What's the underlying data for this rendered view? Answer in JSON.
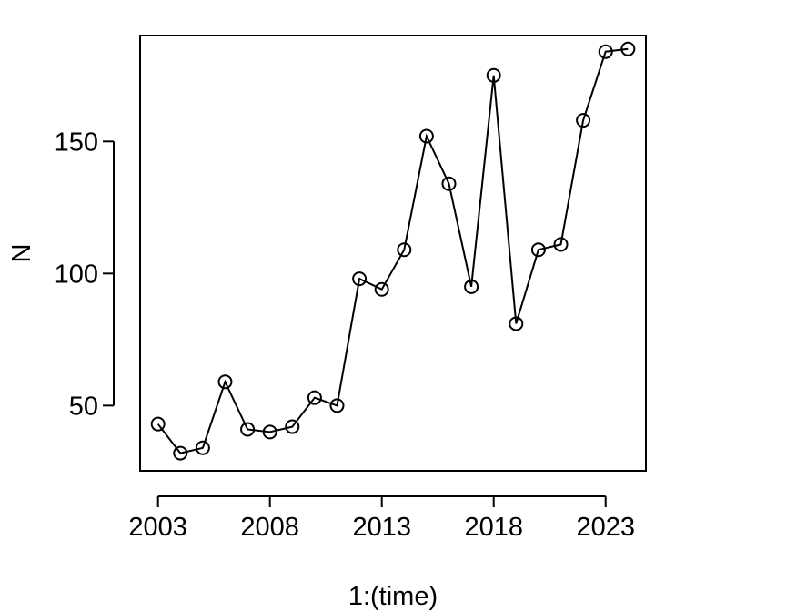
{
  "chart_data": {
    "type": "line",
    "xlabel": "1:(time)",
    "ylabel": "N",
    "x_tick_labels": [
      "2003",
      "2008",
      "2013",
      "2018",
      "2023"
    ],
    "x_tick_values": [
      2003,
      2008,
      2013,
      2018,
      2023
    ],
    "y_tick_labels": [
      "50",
      "100",
      "150"
    ],
    "y_tick_values": [
      50,
      100,
      150
    ],
    "xlim": [
      2002.2,
      2024.8
    ],
    "ylim": [
      25.3,
      190.1
    ],
    "grid": false,
    "markers": "open-circle",
    "x": [
      2003,
      2004,
      2005,
      2006,
      2007,
      2008,
      2009,
      2010,
      2011,
      2012,
      2013,
      2014,
      2015,
      2016,
      2017,
      2018,
      2019,
      2020,
      2021,
      2022,
      2023,
      2024
    ],
    "values": [
      43,
      32,
      34,
      59,
      41,
      40,
      42,
      53,
      50,
      98,
      94,
      109,
      152,
      134,
      95,
      175,
      81,
      109,
      111,
      158,
      184,
      185
    ]
  }
}
